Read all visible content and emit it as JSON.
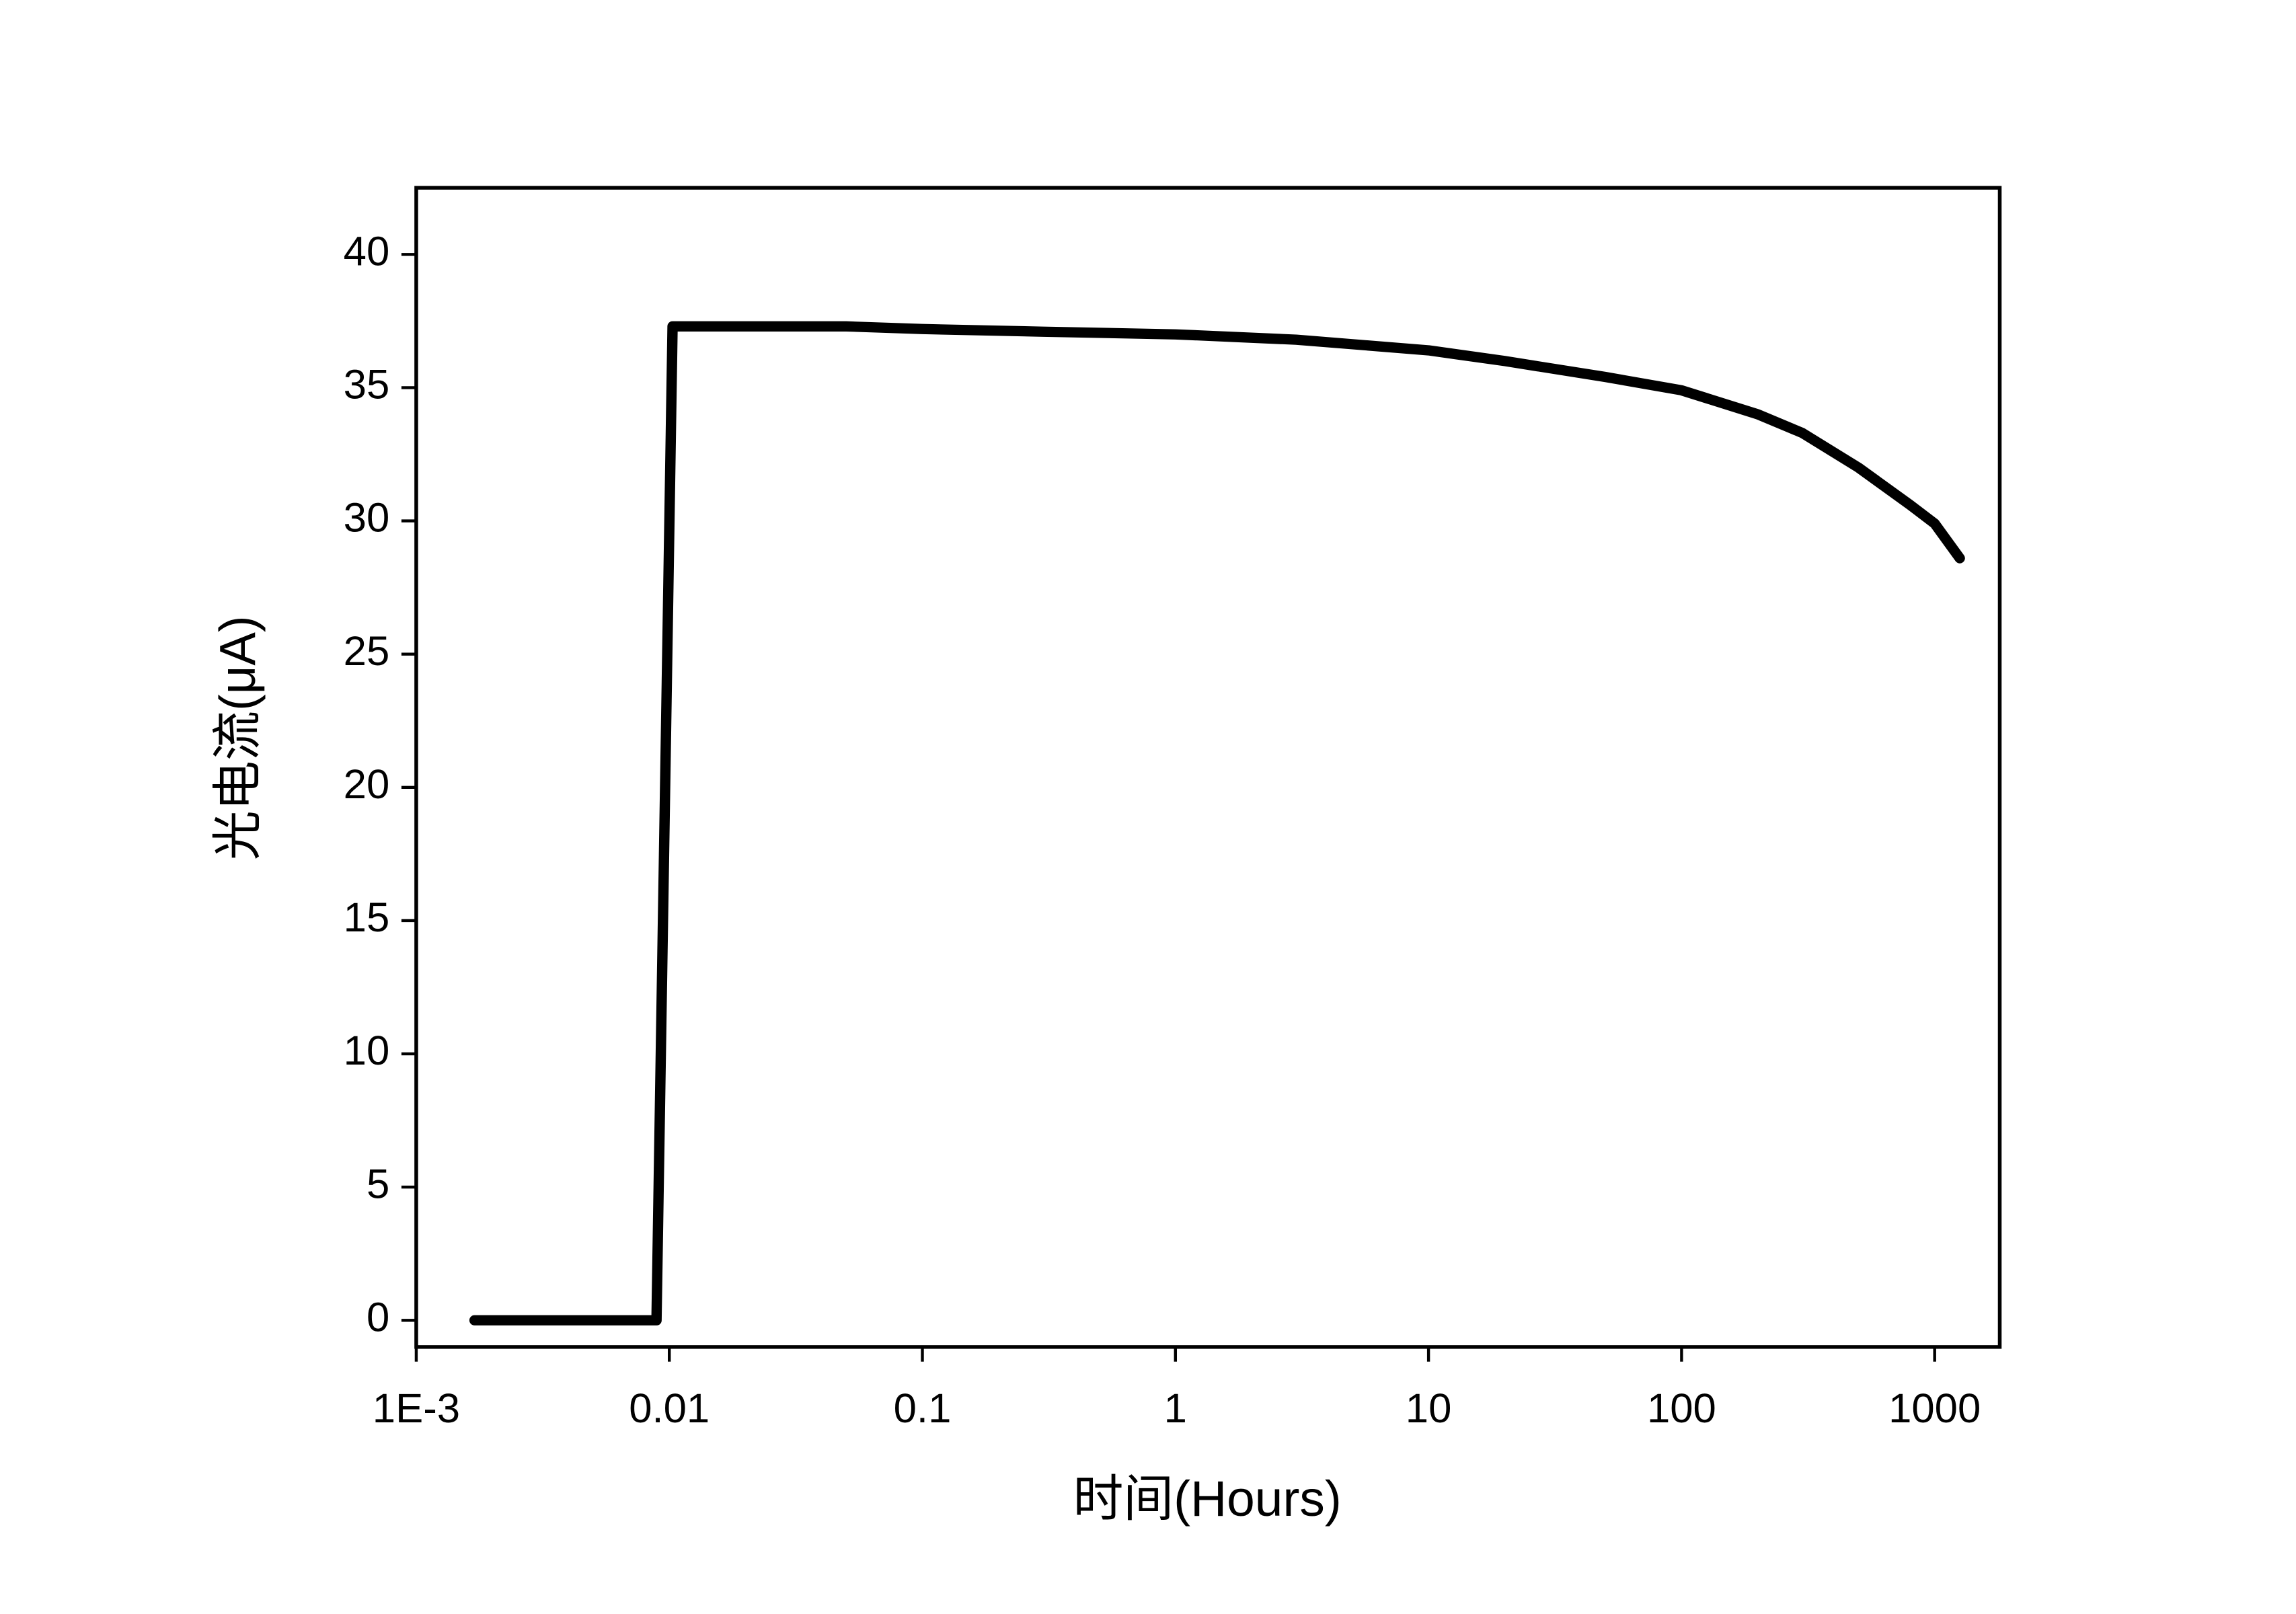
{
  "chart_data": {
    "type": "line",
    "x_label": "时间(Hours)",
    "y_label": "光电流(μA)",
    "xscale": "log",
    "xlim": [
      0.001,
      1808
    ],
    "ylim": [
      -1,
      42.5
    ],
    "xticks": [
      {
        "value": 0.001,
        "label": "1E-3"
      },
      0.01,
      0.1,
      1,
      10,
      100,
      1000
    ],
    "yticks": [
      0,
      5,
      10,
      15,
      20,
      25,
      30,
      35,
      40
    ],
    "series": [
      {
        "name": "光电流",
        "color": "#000000",
        "x": [
          0.0017,
          0.0089,
          0.0103,
          0.02,
          0.05,
          0.1,
          0.3,
          1,
          3,
          10,
          20,
          50,
          100,
          200,
          300,
          500,
          800,
          1000,
          1257
        ],
        "values": [
          0,
          0,
          37.3,
          37.3,
          37.3,
          37.2,
          37.1,
          37.0,
          36.8,
          36.4,
          36.0,
          35.4,
          34.9,
          34.0,
          33.3,
          32.0,
          30.6,
          29.9,
          28.6
        ]
      }
    ]
  }
}
